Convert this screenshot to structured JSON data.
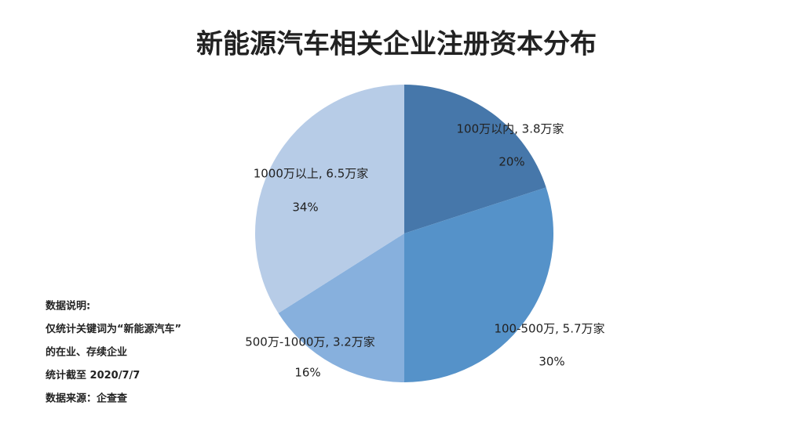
{
  "chart_data": {
    "type": "pie",
    "title": "新能源汽车相关企业注册资本分布",
    "categories": [
      "100万以内, 3.8万家",
      "100-500万, 5.7万家",
      "500万-1000万, 3.2万家",
      "1000万以上, 6.5万家"
    ],
    "values": [
      20,
      30,
      16,
      34
    ],
    "value_labels": [
      "20%",
      "30%",
      "16%",
      "34%"
    ],
    "colors": [
      "#4677aa",
      "#5592c9",
      "#87b0dd",
      "#b7cce7"
    ],
    "notes": [
      "数据说明:",
      "仅统计关键词为“新能源汽车”",
      "的在业、存续企业",
      "统计截至 2020/7/7",
      "数据来源：企查查"
    ]
  }
}
